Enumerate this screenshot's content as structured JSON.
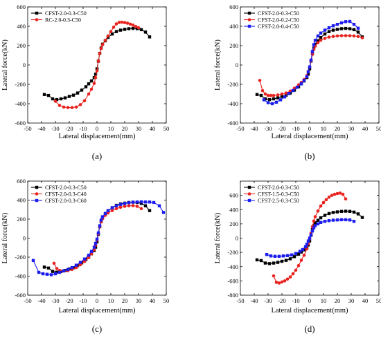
{
  "chart_data": [
    {
      "type": "line",
      "panel_label": "(a)",
      "xlabel": "Lateral displacement(mm)",
      "ylabel": "Lateral force(kN)",
      "xlim": [
        -50,
        50
      ],
      "ylim": [
        -600,
        600
      ],
      "xticks": [
        -50,
        -40,
        -30,
        -20,
        -10,
        0,
        10,
        20,
        30,
        40,
        50
      ],
      "yticks": [
        -600,
        -400,
        -200,
        0,
        200,
        400,
        600
      ],
      "legend_position": "top-left",
      "series": [
        {
          "name": "CFST-2.0-0.3-C50",
          "color": "#000000",
          "marker": "square",
          "x": [
            -38,
            -35,
            -32,
            -29,
            -26,
            -23,
            -20,
            -17,
            -14,
            -11,
            -8,
            -6,
            -4,
            -2,
            -1,
            0,
            1,
            2,
            3,
            4,
            6,
            8,
            11,
            14,
            17,
            20,
            23,
            26,
            29,
            32,
            35,
            38
          ],
          "y": [
            -305,
            -315,
            -350,
            -358,
            -350,
            -340,
            -325,
            -312,
            -290,
            -260,
            -225,
            -195,
            -165,
            -130,
            -95,
            -40,
            40,
            120,
            175,
            215,
            250,
            285,
            320,
            345,
            360,
            368,
            375,
            378,
            375,
            365,
            340,
            290
          ]
        },
        {
          "name": "RC-2.0-0.3-C50",
          "color": "#e8231f",
          "marker": "circle",
          "x": [
            -30,
            -27,
            -24,
            -21,
            -18,
            -15,
            -12,
            -9,
            -6,
            -4,
            -2,
            -1,
            0,
            1,
            2,
            3,
            4,
            6,
            8,
            10,
            12,
            14,
            16,
            18,
            20,
            22,
            24,
            26,
            28,
            30
          ],
          "y": [
            -375,
            -418,
            -435,
            -440,
            -440,
            -435,
            -410,
            -370,
            -300,
            -250,
            -190,
            -130,
            -60,
            40,
            120,
            170,
            210,
            255,
            300,
            345,
            390,
            425,
            440,
            442,
            438,
            432,
            422,
            412,
            398,
            385
          ]
        }
      ]
    },
    {
      "type": "line",
      "panel_label": "(b)",
      "xlabel": "Lateral displacement(mm)",
      "ylabel": "Lateral force(kN)",
      "xlim": [
        -50,
        50
      ],
      "ylim": [
        -600,
        600
      ],
      "xticks": [
        -50,
        -40,
        -30,
        -20,
        -10,
        0,
        10,
        20,
        30,
        40,
        50
      ],
      "yticks": [
        -600,
        -400,
        -200,
        0,
        200,
        400,
        600
      ],
      "legend_position": "top-left",
      "series": [
        {
          "name": "CFST-2.0-0.3-C50",
          "color": "#000000",
          "marker": "square",
          "x": [
            -38,
            -35,
            -32,
            -29,
            -26,
            -23,
            -20,
            -17,
            -14,
            -11,
            -8,
            -6,
            -4,
            -2,
            -1,
            0,
            1,
            2,
            3,
            4,
            6,
            8,
            11,
            14,
            17,
            20,
            23,
            26,
            29,
            32,
            35,
            38
          ],
          "y": [
            -305,
            -315,
            -350,
            -358,
            -350,
            -340,
            -325,
            -312,
            -290,
            -260,
            -225,
            -195,
            -165,
            -130,
            -95,
            -40,
            40,
            120,
            175,
            215,
            250,
            285,
            320,
            345,
            360,
            368,
            375,
            378,
            375,
            365,
            340,
            290
          ]
        },
        {
          "name": "CFST-2.0-0.2-C50",
          "color": "#e8231f",
          "marker": "circle",
          "x": [
            -36,
            -34,
            -32,
            -30,
            -28,
            -26,
            -23,
            -20,
            -17,
            -14,
            -11,
            -8,
            -6,
            -4,
            -2,
            -1,
            0,
            1,
            2,
            3,
            4,
            6,
            8,
            11,
            14,
            17,
            20,
            23,
            26,
            29,
            32,
            35,
            38
          ],
          "y": [
            -160,
            -265,
            -300,
            -315,
            -315,
            -315,
            -310,
            -300,
            -290,
            -270,
            -240,
            -205,
            -180,
            -150,
            -110,
            -70,
            -20,
            40,
            110,
            160,
            195,
            230,
            255,
            275,
            288,
            295,
            300,
            302,
            303,
            302,
            300,
            295,
            280
          ]
        },
        {
          "name": "CFST-2.0-0.4-C50",
          "color": "#1d1df0",
          "marker": "square",
          "x": [
            -33,
            -30,
            -27,
            -24,
            -21,
            -18,
            -15,
            -12,
            -9,
            -6,
            -4,
            -2,
            -1,
            0,
            1,
            2,
            3,
            4,
            6,
            8,
            11,
            14,
            17,
            20,
            23,
            26,
            29,
            32,
            35
          ],
          "y": [
            -360,
            -390,
            -400,
            -385,
            -360,
            -330,
            -295,
            -265,
            -230,
            -195,
            -160,
            -120,
            -70,
            -20,
            50,
            140,
            210,
            255,
            300,
            330,
            360,
            385,
            405,
            420,
            435,
            448,
            450,
            420,
            380
          ]
        }
      ]
    },
    {
      "type": "line",
      "panel_label": "(c)",
      "xlabel": "Lateral displacement(mm)",
      "ylabel": "Lateral force(kN)",
      "xlim": [
        -50,
        50
      ],
      "ylim": [
        -600,
        600
      ],
      "xticks": [
        -50,
        -40,
        -30,
        -20,
        -10,
        0,
        10,
        20,
        30,
        40,
        50
      ],
      "yticks": [
        -600,
        -400,
        -200,
        0,
        200,
        400,
        600
      ],
      "legend_position": "top-left",
      "series": [
        {
          "name": "CFST-2.0-0.3-C50",
          "color": "#000000",
          "marker": "square",
          "x": [
            -38,
            -35,
            -32,
            -29,
            -26,
            -23,
            -20,
            -17,
            -14,
            -11,
            -8,
            -6,
            -4,
            -2,
            -1,
            0,
            1,
            2,
            3,
            4,
            6,
            8,
            11,
            14,
            17,
            20,
            23,
            26,
            29,
            32,
            35,
            38
          ],
          "y": [
            -305,
            -315,
            -350,
            -358,
            -350,
            -340,
            -325,
            -312,
            -290,
            -260,
            -225,
            -195,
            -165,
            -130,
            -95,
            -40,
            40,
            120,
            175,
            215,
            250,
            285,
            320,
            345,
            360,
            368,
            375,
            378,
            375,
            365,
            340,
            290
          ]
        },
        {
          "name": "CFST-2.0-0.3-C40",
          "color": "#e8231f",
          "marker": "circle",
          "x": [
            -31,
            -29,
            -27,
            -24,
            -21,
            -18,
            -15,
            -12,
            -9,
            -6,
            -4,
            -2,
            -1,
            0,
            1,
            2,
            3,
            4,
            6,
            8,
            11,
            14,
            17,
            20,
            23,
            26,
            29,
            32
          ],
          "y": [
            -265,
            -320,
            -340,
            -345,
            -342,
            -330,
            -310,
            -280,
            -245,
            -205,
            -165,
            -120,
            -75,
            -20,
            45,
            120,
            170,
            205,
            240,
            265,
            290,
            310,
            325,
            335,
            340,
            342,
            335,
            310
          ]
        },
        {
          "name": "CFST-2.0-0.3-C60",
          "color": "#1d1df0",
          "marker": "square",
          "x": [
            -46,
            -42,
            -39,
            -36,
            -33,
            -30,
            -27,
            -24,
            -21,
            -18,
            -15,
            -12,
            -9,
            -6,
            -4,
            -2,
            -1,
            0,
            1,
            2,
            3,
            4,
            6,
            8,
            11,
            14,
            17,
            20,
            23,
            26,
            29,
            32,
            35,
            38,
            41,
            45,
            48
          ],
          "y": [
            -235,
            -360,
            -375,
            -380,
            -385,
            -375,
            -360,
            -345,
            -330,
            -310,
            -285,
            -255,
            -220,
            -180,
            -140,
            -95,
            -55,
            -10,
            55,
            130,
            190,
            225,
            260,
            290,
            320,
            340,
            355,
            365,
            372,
            378,
            380,
            382,
            380,
            380,
            375,
            340,
            270
          ]
        }
      ]
    },
    {
      "type": "line",
      "panel_label": "(d)",
      "xlabel": "Lateral displacement(mm)",
      "ylabel": "Lateral force(kN)",
      "xlim": [
        -50,
        50
      ],
      "ylim": [
        -800,
        800
      ],
      "xticks": [
        -50,
        -40,
        -30,
        -20,
        -10,
        0,
        10,
        20,
        30,
        40,
        50
      ],
      "yticks": [
        -800,
        -600,
        -400,
        -200,
        0,
        200,
        400,
        600
      ],
      "legend_position": "top-left",
      "series": [
        {
          "name": "CFST-2.0-0.3-C50",
          "color": "#000000",
          "marker": "square",
          "x": [
            -38,
            -35,
            -32,
            -29,
            -26,
            -23,
            -20,
            -17,
            -14,
            -11,
            -8,
            -6,
            -4,
            -2,
            -1,
            0,
            1,
            2,
            3,
            4,
            6,
            8,
            11,
            14,
            17,
            20,
            23,
            26,
            29,
            32,
            35,
            38
          ],
          "y": [
            -305,
            -315,
            -350,
            -358,
            -350,
            -340,
            -325,
            -312,
            -290,
            -260,
            -225,
            -195,
            -165,
            -130,
            -95,
            -40,
            40,
            120,
            175,
            215,
            250,
            285,
            320,
            345,
            360,
            368,
            375,
            378,
            375,
            365,
            340,
            290
          ]
        },
        {
          "name": "CFST-1.5-0.3-C50",
          "color": "#e8231f",
          "marker": "circle",
          "x": [
            -26,
            -24,
            -22,
            -20,
            -18,
            -16,
            -14,
            -12,
            -10,
            -8,
            -6,
            -4,
            -2,
            -1,
            0,
            1,
            2,
            3,
            4,
            6,
            8,
            10,
            12,
            14,
            16,
            18,
            20,
            22,
            24,
            26
          ],
          "y": [
            -530,
            -620,
            -630,
            -615,
            -600,
            -575,
            -545,
            -500,
            -450,
            -385,
            -310,
            -240,
            -150,
            -80,
            -10,
            70,
            160,
            240,
            300,
            380,
            450,
            500,
            540,
            575,
            600,
            615,
            625,
            632,
            615,
            550
          ]
        },
        {
          "name": "CFST-2.5-0.3-C50",
          "color": "#1d1df0",
          "marker": "square",
          "x": [
            -31,
            -28,
            -25,
            -22,
            -19,
            -16,
            -13,
            -10,
            -7,
            -5,
            -3,
            -2,
            -1,
            0,
            1,
            2,
            3,
            4,
            6,
            8,
            11,
            14,
            17,
            20,
            23,
            26,
            29,
            32
          ],
          "y": [
            -230,
            -250,
            -255,
            -255,
            -250,
            -245,
            -235,
            -215,
            -185,
            -160,
            -120,
            -85,
            -40,
            0,
            45,
            100,
            145,
            175,
            200,
            220,
            235,
            245,
            252,
            255,
            258,
            258,
            255,
            235
          ]
        }
      ]
    }
  ]
}
